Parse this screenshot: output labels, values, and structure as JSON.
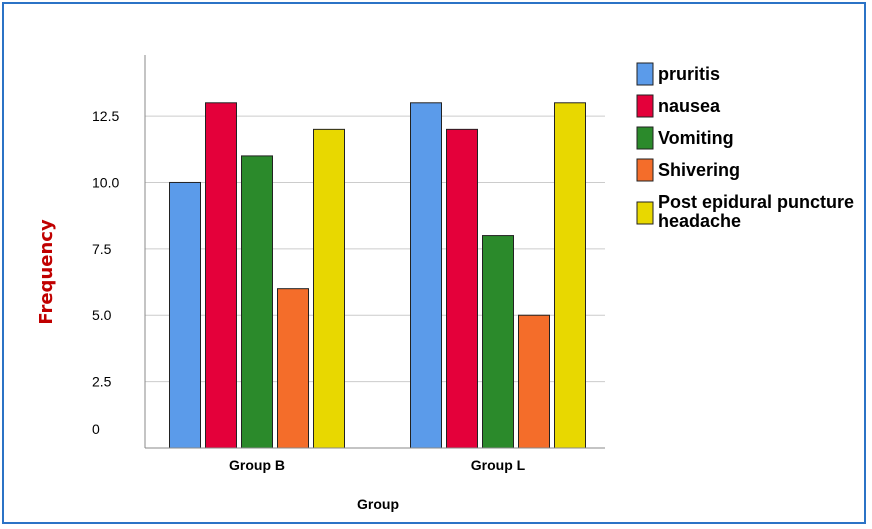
{
  "chart_data": {
    "type": "bar",
    "xlabel": "Group",
    "ylabel": "Frequency",
    "categories": [
      "Group B",
      "Group L"
    ],
    "series": [
      {
        "name": "pruritis",
        "values": [
          10,
          13
        ],
        "color": "#5b9bea"
      },
      {
        "name": "nausea",
        "values": [
          13,
          12
        ],
        "color": "#e4003a"
      },
      {
        "name": "Vomiting",
        "values": [
          11,
          8
        ],
        "color": "#2b8a2b"
      },
      {
        "name": "Shivering",
        "values": [
          6,
          5
        ],
        "color": "#f46d2a"
      },
      {
        "name": "Post epidural puncture headache",
        "legend_lines": [
          "Post epidural puncture",
          "headache"
        ],
        "values": [
          12,
          13
        ],
        "color": "#e8d800"
      }
    ],
    "yticks": [
      "0",
      "2.5",
      "5.0",
      "7.5",
      "10.0",
      "12.5"
    ],
    "ylim": [
      0,
      14.8
    ],
    "grid": "horizontal",
    "legend_position": "right",
    "colors": {
      "ylabel": "#c00000",
      "frame": "#2b73c6",
      "grid": "#cccccc",
      "bar_outline": "#222222"
    }
  }
}
